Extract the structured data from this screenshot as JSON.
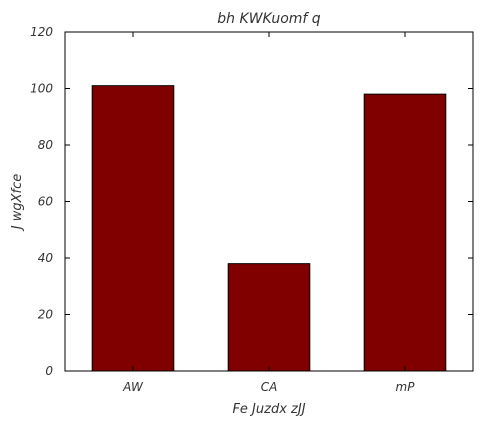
{
  "chart_data": {
    "type": "bar",
    "title": "bh KWKuomf q",
    "xlabel": "Fe Juzdx zJJ",
    "ylabel": "J wgXfce",
    "categories": [
      "AW",
      "CA",
      "mP"
    ],
    "values": [
      101,
      38,
      98
    ],
    "ylim": [
      0,
      120
    ],
    "yticks": [
      0,
      20,
      40,
      60,
      80,
      100,
      120
    ],
    "bar_color": "#800000",
    "edge_color": "#000000",
    "grid": false,
    "legend": "none"
  }
}
